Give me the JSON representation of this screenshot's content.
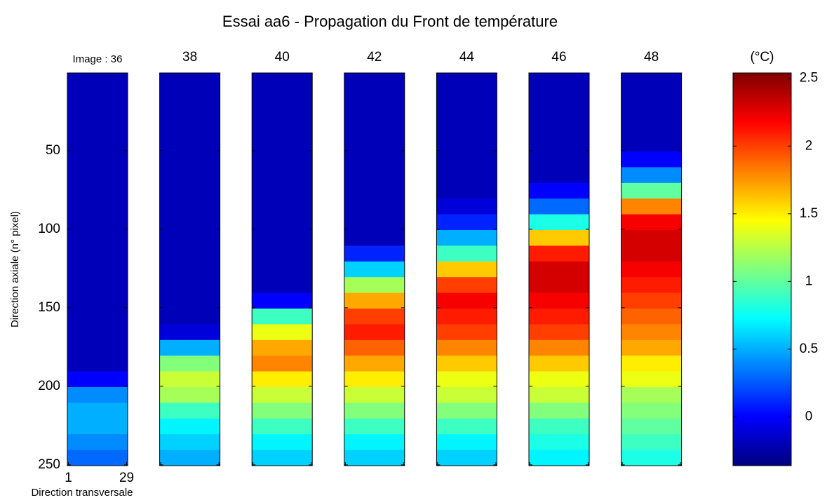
{
  "chart_data": {
    "type": "heatmap",
    "title": "Essai aa6 - Propagation du Front de température",
    "ylabel": "Direction axiale (n° pixel)",
    "xlabel": "Direction transversale",
    "colormap": "jet",
    "xlim": [
      0.5,
      29.5
    ],
    "xticks": [
      1,
      29
    ],
    "ylim": [
      0.5,
      250.5
    ],
    "yticks": [
      50,
      100,
      150,
      200,
      250
    ],
    "y_reversed": true,
    "rows": [
      10,
      20,
      30,
      40,
      50,
      60,
      70,
      80,
      90,
      100,
      110,
      120,
      130,
      140,
      150,
      160,
      170,
      180,
      190,
      200,
      210,
      220,
      230,
      240,
      250
    ],
    "panels": [
      {
        "label": "Image : 36",
        "values": [
          -0.2,
          -0.2,
          -0.2,
          -0.2,
          -0.2,
          -0.2,
          -0.2,
          -0.2,
          -0.2,
          -0.2,
          -0.2,
          -0.2,
          -0.2,
          -0.2,
          -0.2,
          -0.2,
          -0.2,
          -0.2,
          -0.2,
          0.0,
          0.4,
          0.5,
          0.5,
          0.4,
          0.3
        ]
      },
      {
        "label": "38",
        "values": [
          -0.2,
          -0.2,
          -0.2,
          -0.2,
          -0.2,
          -0.2,
          -0.2,
          -0.2,
          -0.2,
          -0.2,
          -0.2,
          -0.2,
          -0.2,
          -0.2,
          -0.2,
          -0.2,
          -0.1,
          0.5,
          1.1,
          1.3,
          1.2,
          0.9,
          0.7,
          0.6,
          0.5
        ]
      },
      {
        "label": "40",
        "values": [
          -0.2,
          -0.2,
          -0.2,
          -0.2,
          -0.2,
          -0.2,
          -0.2,
          -0.2,
          -0.2,
          -0.2,
          -0.2,
          -0.2,
          -0.2,
          -0.2,
          0.0,
          0.9,
          1.4,
          1.7,
          1.8,
          1.5,
          1.3,
          1.1,
          0.9,
          0.7,
          0.6
        ]
      },
      {
        "label": "42",
        "values": [
          -0.2,
          -0.2,
          -0.2,
          -0.2,
          -0.2,
          -0.2,
          -0.2,
          -0.2,
          -0.2,
          -0.2,
          -0.2,
          0.1,
          0.6,
          1.2,
          1.7,
          2.0,
          2.1,
          1.9,
          1.7,
          1.5,
          1.3,
          1.1,
          0.9,
          0.7,
          0.6
        ]
      },
      {
        "label": "44",
        "values": [
          -0.2,
          -0.2,
          -0.2,
          -0.2,
          -0.2,
          -0.2,
          -0.2,
          -0.2,
          -0.1,
          0.1,
          0.5,
          0.9,
          1.6,
          2.0,
          2.2,
          2.1,
          2.0,
          1.8,
          1.6,
          1.4,
          1.3,
          1.1,
          0.9,
          0.7,
          0.6
        ]
      },
      {
        "label": "46",
        "values": [
          -0.2,
          -0.2,
          -0.2,
          -0.2,
          -0.2,
          -0.2,
          -0.2,
          0.0,
          0.3,
          0.8,
          1.6,
          2.1,
          2.3,
          2.3,
          2.2,
          2.1,
          2.0,
          1.8,
          1.6,
          1.4,
          1.3,
          1.1,
          0.9,
          0.8,
          0.7
        ]
      },
      {
        "label": "48",
        "values": [
          -0.2,
          -0.2,
          -0.2,
          -0.2,
          -0.2,
          0.0,
          0.4,
          1.0,
          1.8,
          2.2,
          2.3,
          2.3,
          2.2,
          2.1,
          2.0,
          1.9,
          1.8,
          1.7,
          1.5,
          1.4,
          1.2,
          1.1,
          1.0,
          0.9,
          0.8
        ]
      }
    ],
    "colorbar": {
      "label": "(°C)",
      "clim": [
        -0.36,
        2.54
      ],
      "ticks": [
        0,
        0.5,
        1,
        1.5,
        2,
        2.5
      ]
    }
  }
}
